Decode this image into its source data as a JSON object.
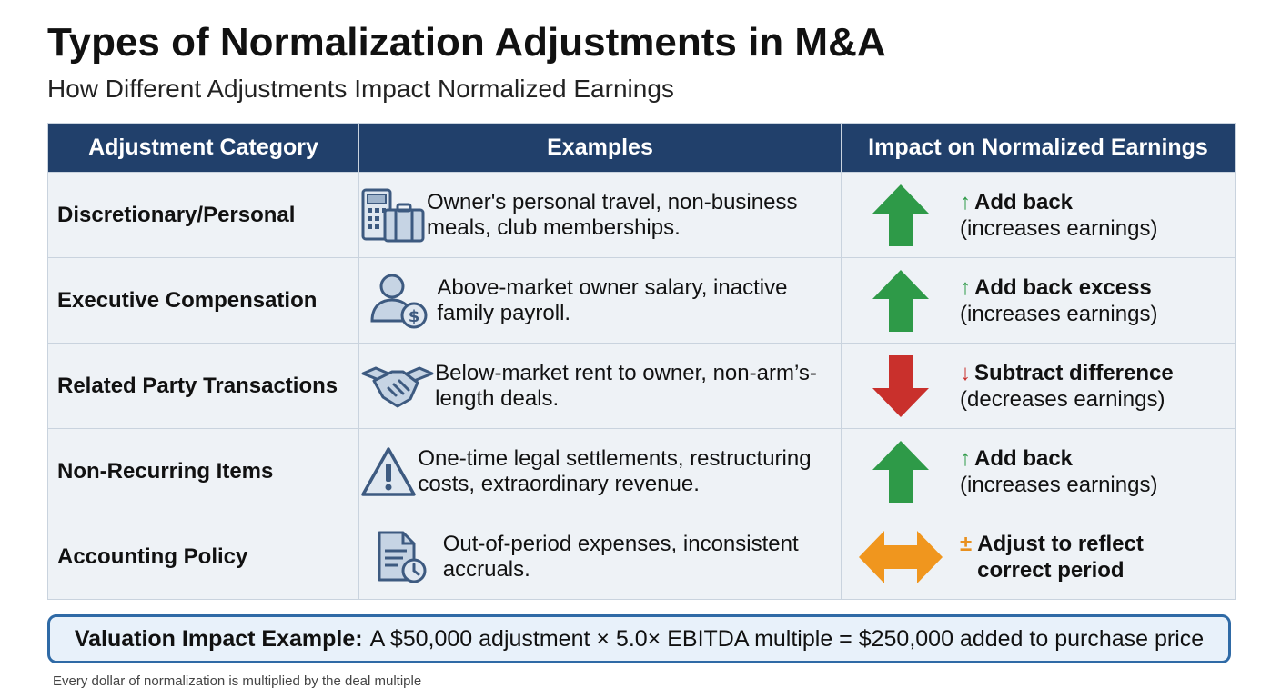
{
  "title": "Types of Normalization Adjustments in M&A",
  "subtitle": "How Different Adjustments Impact Normalized Earnings",
  "table": {
    "headers": [
      "Adjustment Category",
      "Examples",
      "Impact on Normalized Earnings"
    ],
    "rows": [
      {
        "category": "Discretionary/Personal",
        "icon": "calculator-briefcase-icon",
        "examples": "Owner's personal travel, non-business meals, club memberships.",
        "symbol": "↑",
        "impact_main": "Add back",
        "impact_sub": "(increases earnings)",
        "direction": "up"
      },
      {
        "category": "Executive Compensation",
        "icon": "person-dollar-icon",
        "examples": "Above-market owner salary, inactive family payroll.",
        "symbol": "↑",
        "impact_main": "Add back excess",
        "impact_sub": "(increases earnings)",
        "direction": "up"
      },
      {
        "category": "Related Party Transactions",
        "icon": "handshake-icon",
        "examples": "Below-market rent to owner, non-arm’s-length deals.",
        "symbol": "↓",
        "impact_main": "Subtract difference",
        "impact_sub": "(decreases earnings)",
        "direction": "down"
      },
      {
        "category": "Non-Recurring Items",
        "icon": "warning-icon",
        "examples": "One-time legal settlements, restructuring costs, extraordinary revenue.",
        "symbol": "↑",
        "impact_main": "Add back",
        "impact_sub": "(increases earnings)",
        "direction": "up"
      },
      {
        "category": "Accounting Policy",
        "icon": "document-clock-icon",
        "examples": "Out-of-period expenses, inconsistent accruals.",
        "symbol": "±",
        "impact_main": "Adjust to reflect correct period",
        "impact_sub": "",
        "direction": "both"
      }
    ]
  },
  "callout": {
    "label": "Valuation Impact Example:",
    "text": "A $50,000 adjustment × 5.0× EBITDA multiple = $250,000 added to purchase price"
  },
  "footnote": "Every dollar of normalization is multiplied by the deal multiple",
  "colors": {
    "header_bg": "#21406b",
    "up_arrow": "#2e9a48",
    "down_arrow": "#c9302c",
    "both_arrow": "#f0961e",
    "callout_border": "#2f6aa6"
  }
}
